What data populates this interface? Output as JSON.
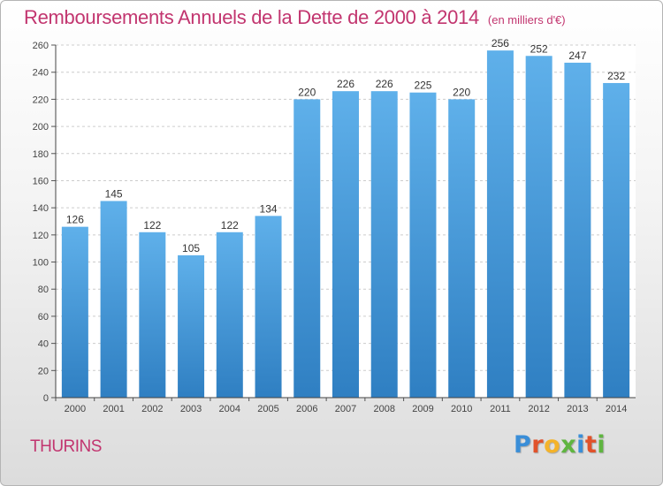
{
  "header": {
    "title": "Remboursements Annuels de la Dette de 2000 à 2014",
    "unit": "(en milliers d'€)"
  },
  "footer": {
    "city": "THURINS",
    "logo": {
      "letters": [
        "P",
        "r",
        "o",
        "x",
        "i",
        "t",
        "i"
      ],
      "colors": [
        "#3a8ed8",
        "#e1522a",
        "#f4b32a",
        "#5fb540",
        "#3a8ed8",
        "#e1522a",
        "#5fb540"
      ]
    }
  },
  "colors": {
    "bar_light": "#5fb0ea",
    "bar_dark": "#2f7fc2",
    "title": "#c2356f",
    "grid": "#cccccc"
  },
  "chart_data": {
    "type": "bar",
    "title": "Remboursements Annuels de la Dette de 2000 à 2014",
    "categories": [
      "2000",
      "2001",
      "2002",
      "2003",
      "2004",
      "2005",
      "2006",
      "2007",
      "2008",
      "2009",
      "2010",
      "2011",
      "2012",
      "2013",
      "2014"
    ],
    "values": [
      126,
      145,
      122,
      105,
      122,
      134,
      220,
      226,
      226,
      225,
      220,
      256,
      252,
      247,
      232
    ],
    "ylim": [
      0,
      260
    ],
    "yticks": [
      0,
      20,
      40,
      60,
      80,
      100,
      120,
      140,
      160,
      180,
      200,
      220,
      240,
      260
    ],
    "xlabel": "",
    "ylabel": "",
    "grid": true
  }
}
